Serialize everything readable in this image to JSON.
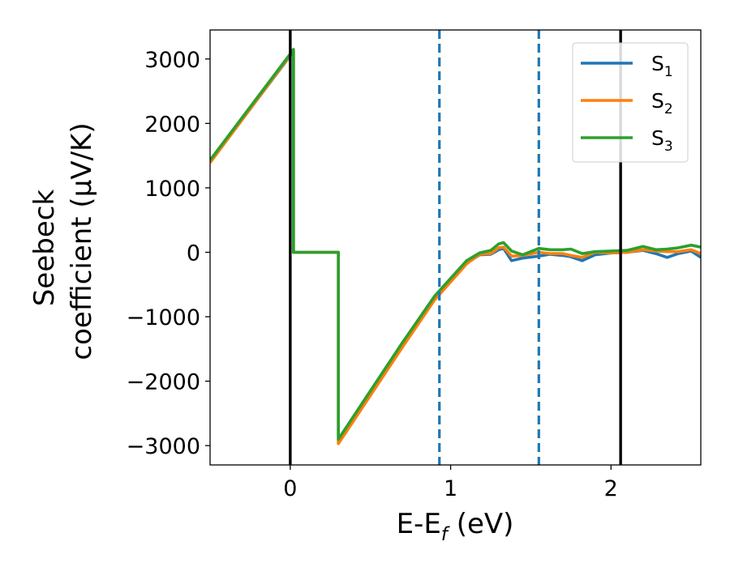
{
  "chart_data": {
    "type": "line",
    "xlabel": {
      "main": "E-E",
      "sub": "f",
      "suffix": " (eV)"
    },
    "ylabel": {
      "line1": "Seebeck",
      "line2": "coefficient  (μV/K)"
    },
    "xlim": [
      -0.5,
      2.56
    ],
    "ylim": [
      -3300,
      3450
    ],
    "xticks": [
      0,
      1,
      2
    ],
    "xtick_labels": [
      "0",
      "1",
      "2"
    ],
    "yticks": [
      3000,
      2000,
      1000,
      0,
      -1000,
      -2000,
      -3000
    ],
    "ytick_labels": [
      "3000",
      "2000",
      "1000",
      "0",
      "−1000",
      "−2000",
      "−3000"
    ],
    "grid": false,
    "legend": {
      "placement": "top-right"
    },
    "vlines": [
      {
        "x": 0.0,
        "style": "solid",
        "color": "#000000"
      },
      {
        "x": 2.06,
        "style": "solid",
        "color": "#000000"
      },
      {
        "x": 0.93,
        "style": "dashed",
        "color": "#1f77b4"
      },
      {
        "x": 1.55,
        "style": "dashed",
        "color": "#1f77b4"
      }
    ],
    "series": [
      {
        "name": "S",
        "sub": "1",
        "color": "#1f77b4",
        "points": [
          [
            -0.5,
            1400
          ],
          [
            0.0,
            3050
          ],
          [
            0.02,
            3130
          ],
          [
            0.02,
            0
          ],
          [
            0.3,
            0
          ],
          [
            0.3,
            -2950
          ],
          [
            0.5,
            -2200
          ],
          [
            0.7,
            -1450
          ],
          [
            0.9,
            -720
          ],
          [
            1.1,
            -170
          ],
          [
            1.18,
            -40
          ],
          [
            1.25,
            -30
          ],
          [
            1.3,
            40
          ],
          [
            1.33,
            60
          ],
          [
            1.38,
            -130
          ],
          [
            1.45,
            -90
          ],
          [
            1.55,
            -60
          ],
          [
            1.62,
            -30
          ],
          [
            1.7,
            -50
          ],
          [
            1.75,
            -70
          ],
          [
            1.82,
            -130
          ],
          [
            1.9,
            -40
          ],
          [
            2.0,
            -10
          ],
          [
            2.1,
            0
          ],
          [
            2.2,
            30
          ],
          [
            2.28,
            -20
          ],
          [
            2.35,
            -80
          ],
          [
            2.42,
            -20
          ],
          [
            2.5,
            20
          ],
          [
            2.56,
            -80
          ]
        ]
      },
      {
        "name": "S",
        "sub": "2",
        "color": "#ff7f0e",
        "points": [
          [
            -0.5,
            1390
          ],
          [
            0.0,
            3060
          ],
          [
            0.02,
            3130
          ],
          [
            0.02,
            0
          ],
          [
            0.3,
            0
          ],
          [
            0.3,
            -2970
          ],
          [
            0.5,
            -2220
          ],
          [
            0.7,
            -1470
          ],
          [
            0.9,
            -740
          ],
          [
            1.1,
            -180
          ],
          [
            1.18,
            -30
          ],
          [
            1.25,
            -20
          ],
          [
            1.3,
            70
          ],
          [
            1.33,
            80
          ],
          [
            1.38,
            -60
          ],
          [
            1.45,
            -50
          ],
          [
            1.55,
            0
          ],
          [
            1.62,
            -20
          ],
          [
            1.7,
            -20
          ],
          [
            1.75,
            -50
          ],
          [
            1.82,
            -80
          ],
          [
            1.9,
            0
          ],
          [
            2.0,
            -10
          ],
          [
            2.1,
            0
          ],
          [
            2.2,
            40
          ],
          [
            2.28,
            20
          ],
          [
            2.35,
            10
          ],
          [
            2.42,
            10
          ],
          [
            2.5,
            40
          ],
          [
            2.56,
            -20
          ]
        ]
      },
      {
        "name": "S",
        "sub": "3",
        "color": "#2ca02c",
        "points": [
          [
            -0.5,
            1430
          ],
          [
            0.0,
            3080
          ],
          [
            0.02,
            3150
          ],
          [
            0.02,
            0
          ],
          [
            0.3,
            0
          ],
          [
            0.3,
            -2900
          ],
          [
            0.5,
            -2150
          ],
          [
            0.7,
            -1400
          ],
          [
            0.9,
            -680
          ],
          [
            1.1,
            -130
          ],
          [
            1.18,
            -10
          ],
          [
            1.25,
            30
          ],
          [
            1.3,
            130
          ],
          [
            1.33,
            150
          ],
          [
            1.38,
            20
          ],
          [
            1.45,
            -40
          ],
          [
            1.55,
            60
          ],
          [
            1.62,
            40
          ],
          [
            1.7,
            40
          ],
          [
            1.75,
            50
          ],
          [
            1.82,
            -20
          ],
          [
            1.9,
            10
          ],
          [
            2.0,
            20
          ],
          [
            2.1,
            30
          ],
          [
            2.2,
            90
          ],
          [
            2.28,
            40
          ],
          [
            2.35,
            50
          ],
          [
            2.42,
            70
          ],
          [
            2.5,
            110
          ],
          [
            2.56,
            80
          ]
        ]
      }
    ]
  }
}
